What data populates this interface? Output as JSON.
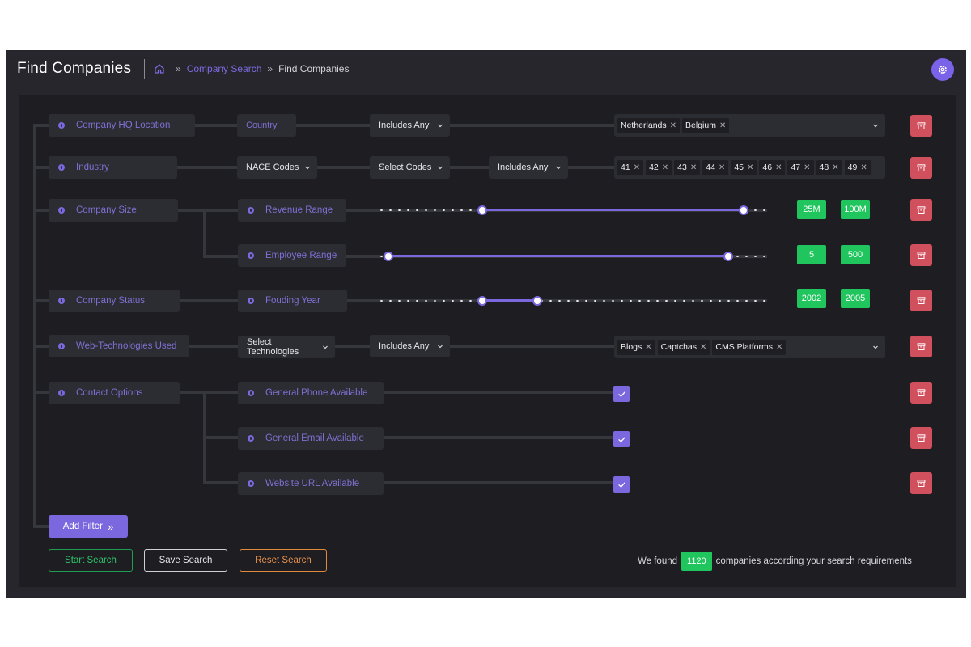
{
  "header": {
    "title": "Find Companies",
    "breadcrumb": {
      "link": "Company Search",
      "separator": "»",
      "current": "Find Companies"
    },
    "settings_icon": "gear-icon"
  },
  "filters": {
    "hq_location": {
      "label": "Company HQ Location",
      "field": "Country",
      "operator": "Includes Any",
      "chips": [
        "Netherlands",
        "Belgium"
      ]
    },
    "industry": {
      "label": "Industry",
      "code_type": "NACE Codes",
      "codes_select": "Select Codes",
      "operator": "Includes Any",
      "chips": [
        "41",
        "42",
        "43",
        "44",
        "45",
        "46",
        "47",
        "48",
        "49"
      ]
    },
    "company_size": {
      "label": "Company Size",
      "revenue": {
        "label": "Revenue Range",
        "min": "25M",
        "max": "100M",
        "min_fraction": 0.27,
        "max_fraction": 0.94
      },
      "employees": {
        "label": "Employee Range",
        "min": "5",
        "max": "500",
        "min_fraction": 0.03,
        "max_fraction": 0.9
      }
    },
    "company_status": {
      "label": "Company Status",
      "founding_year": {
        "label": "Fouding Year",
        "min": "2002",
        "max": "2005",
        "min_fraction": 0.27,
        "max_fraction": 0.41
      }
    },
    "web_tech": {
      "label": "Web-Technologies Used",
      "select": "Select Technologies",
      "operator": "Includes Any",
      "chips": [
        "Blogs",
        "Captchas",
        "CMS Platforms"
      ]
    },
    "contact": {
      "label": "Contact Options",
      "options": [
        {
          "label": "General Phone Available",
          "checked": true
        },
        {
          "label": "General Email Available",
          "checked": true
        },
        {
          "label": "Website URL Available",
          "checked": true
        }
      ]
    }
  },
  "actions": {
    "add_filter": "Add Filter",
    "add_filter_icon": "»",
    "start": "Start Search",
    "save": "Save Search",
    "reset": "Reset Search"
  },
  "result": {
    "prefix": "We found",
    "count": "1120",
    "suffix": "companies according your search requirements"
  },
  "colors": {
    "accent": "#7b68de",
    "success": "#21c55d",
    "danger": "#d1505e",
    "warning": "#e08a3c"
  }
}
